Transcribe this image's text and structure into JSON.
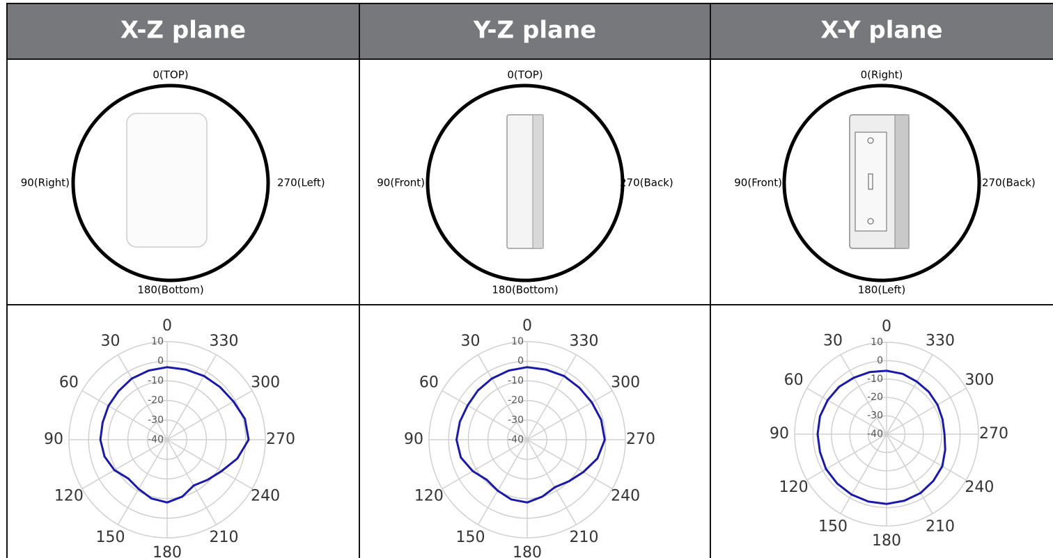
{
  "table": {
    "headers": [
      "X-Z plane",
      "Y-Z plane",
      "X-Y plane"
    ],
    "orientation": [
      {
        "top": "0(TOP)",
        "left": "90(Right)",
        "right": "270(Left)",
        "bottom": "180(Bottom)"
      },
      {
        "top": "0(TOP)",
        "left": "90(Front)",
        "right": "270(Back)",
        "bottom": "180(Bottom)"
      },
      {
        "top": "0(Right)",
        "left": "90(Front)",
        "right": "270(Back)",
        "bottom": "180(Left)"
      }
    ]
  },
  "chart_data": [
    {
      "type": "polar",
      "x": [
        0,
        15,
        30,
        45,
        60,
        75,
        90,
        105,
        120,
        135,
        150,
        165,
        180,
        195,
        210,
        225,
        240,
        255,
        270,
        285,
        300,
        315,
        330,
        345
      ],
      "series": [
        {
          "color": "#1a1aa8",
          "values": [
            -3,
            -3.5,
            -4,
            -5,
            -5.5,
            -6,
            -6,
            -7,
            -9,
            -12,
            -11,
            -9,
            -8,
            -10,
            -13,
            -11,
            -8,
            -3,
            1.5,
            1,
            -1,
            -2,
            -2.5,
            -3
          ]
        }
      ],
      "rlim": [
        -40,
        10
      ],
      "rticks": [
        -40,
        -30,
        -20,
        -10,
        0,
        10
      ],
      "xticks": [
        0,
        30,
        60,
        90,
        120,
        150,
        180,
        210,
        240,
        270,
        300,
        330
      ],
      "grid": true
    },
    {
      "type": "polar",
      "x": [
        0,
        15,
        30,
        45,
        60,
        75,
        90,
        105,
        120,
        135,
        150,
        165,
        180,
        195,
        210,
        225,
        240,
        255,
        270,
        285,
        300,
        315,
        330,
        345
      ],
      "series": [
        {
          "color": "#1a1aa8",
          "values": [
            -3,
            -3.5,
            -4,
            -4.5,
            -5,
            -4.5,
            -4,
            -5,
            -8,
            -11,
            -10,
            -8.5,
            -8,
            -10,
            -12,
            -10,
            -7,
            -3,
            -0.5,
            -1,
            -2,
            -2.5,
            -2.5,
            -3
          ]
        }
      ],
      "rlim": [
        -40,
        10
      ],
      "rticks": [
        -40,
        -30,
        -20,
        -10,
        0,
        10
      ],
      "xticks": [
        0,
        30,
        60,
        90,
        120,
        150,
        180,
        210,
        240,
        270,
        300,
        330
      ],
      "grid": true
    },
    {
      "type": "polar",
      "x": [
        0,
        15,
        30,
        45,
        60,
        75,
        90,
        105,
        120,
        135,
        150,
        165,
        180,
        195,
        210,
        225,
        240,
        255,
        270,
        285,
        300,
        315,
        330,
        345
      ],
      "series": [
        {
          "color": "#1a1aa8",
          "values": [
            -5.5,
            -5,
            -4.5,
            -3.5,
            -3,
            -2.5,
            -2.5,
            -2.5,
            -2,
            -2,
            -2,
            -2,
            -2,
            -2.5,
            -3,
            -4,
            -5,
            -7,
            -8.5,
            -8.5,
            -8,
            -7.5,
            -7,
            -6
          ]
        }
      ],
      "rlim": [
        -40,
        10
      ],
      "rticks": [
        -40,
        -30,
        -20,
        -10,
        0,
        10
      ],
      "xticks": [
        0,
        30,
        60,
        90,
        120,
        150,
        180,
        210,
        240,
        270,
        300,
        330
      ],
      "grid": true
    }
  ]
}
